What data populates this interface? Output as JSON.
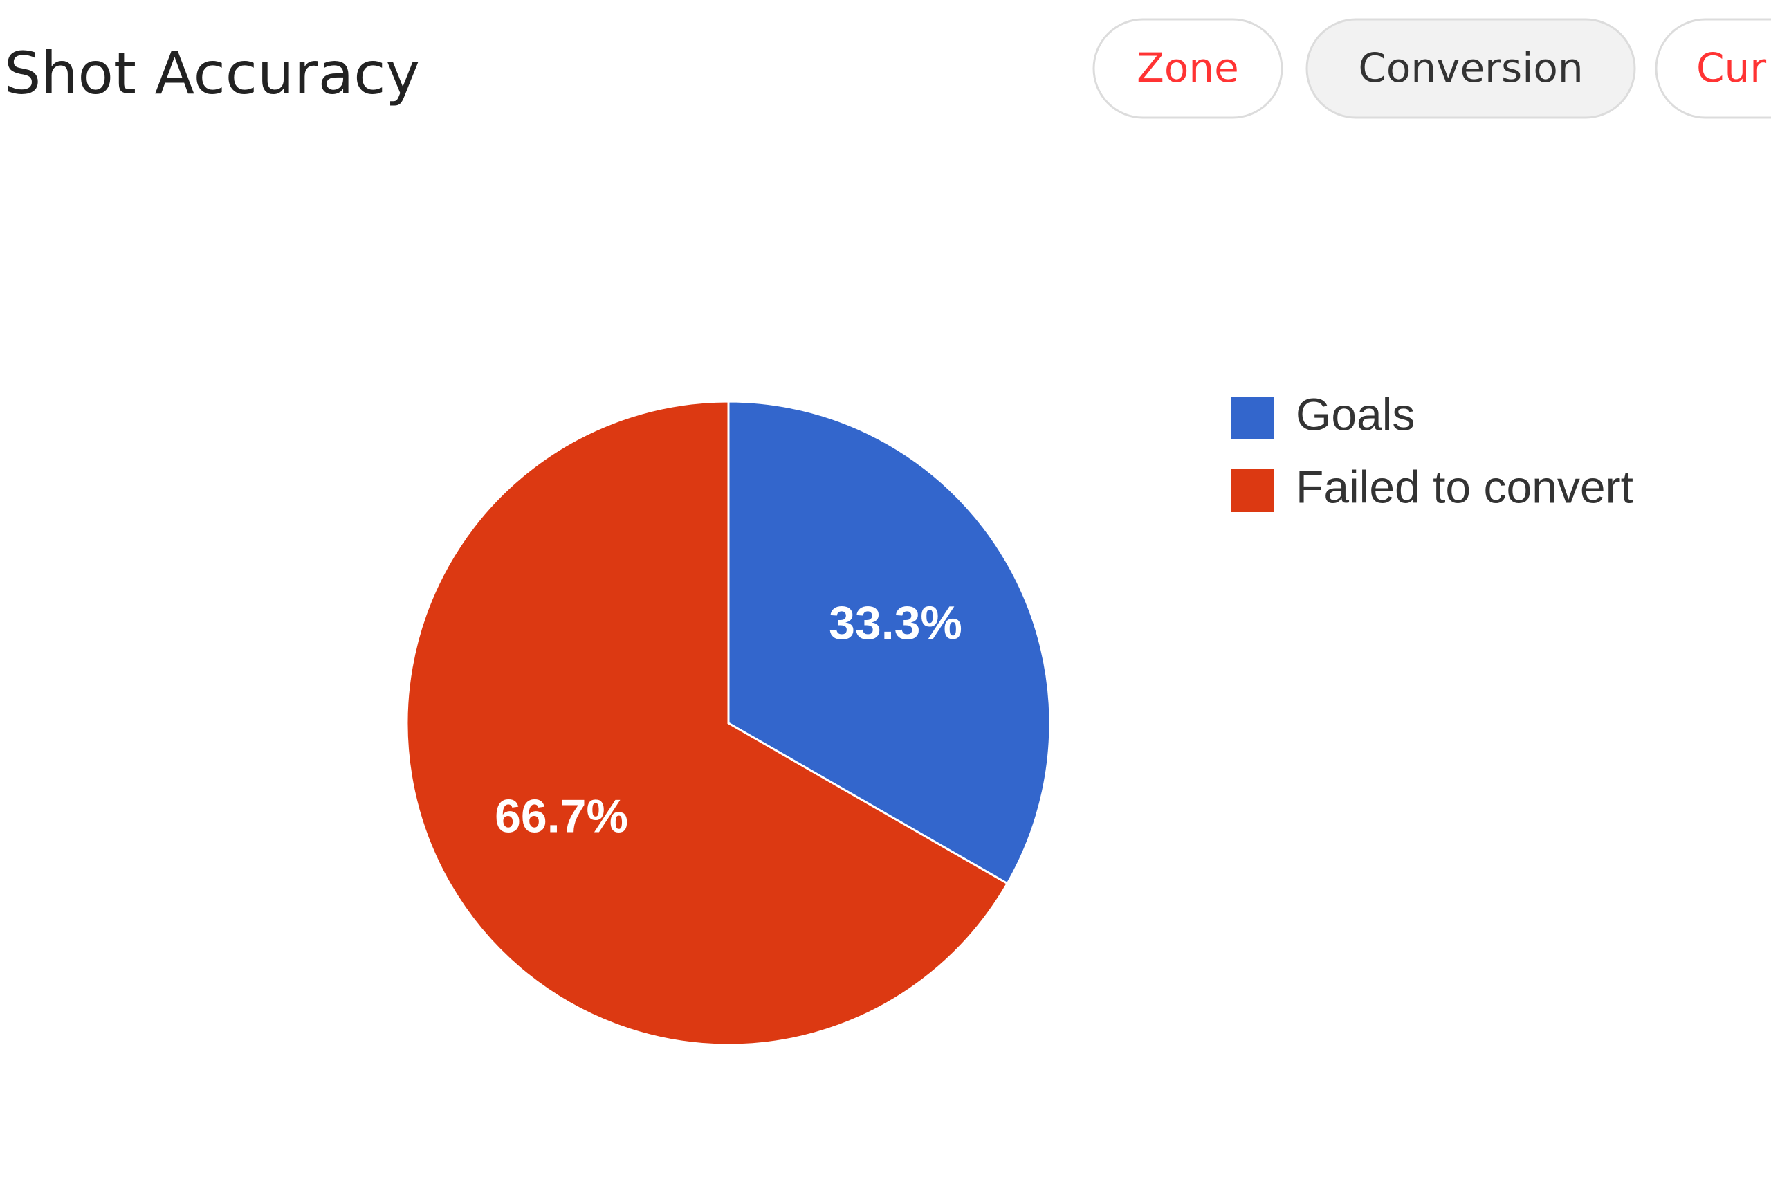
{
  "chart_data": {
    "type": "pie",
    "title": "Shot Accuracy",
    "categories": [
      "Goals",
      "Failed to convert"
    ],
    "values": [
      33.3,
      66.7
    ],
    "value_labels": [
      "33.3%",
      "66.7%"
    ],
    "colors": [
      "#3366cc",
      "#dc3912"
    ],
    "legend": "right"
  },
  "tabs": [
    {
      "label": "Zone",
      "active": false
    },
    {
      "label": "Conversion",
      "active": true
    },
    {
      "label": "Cur",
      "active": false
    }
  ]
}
